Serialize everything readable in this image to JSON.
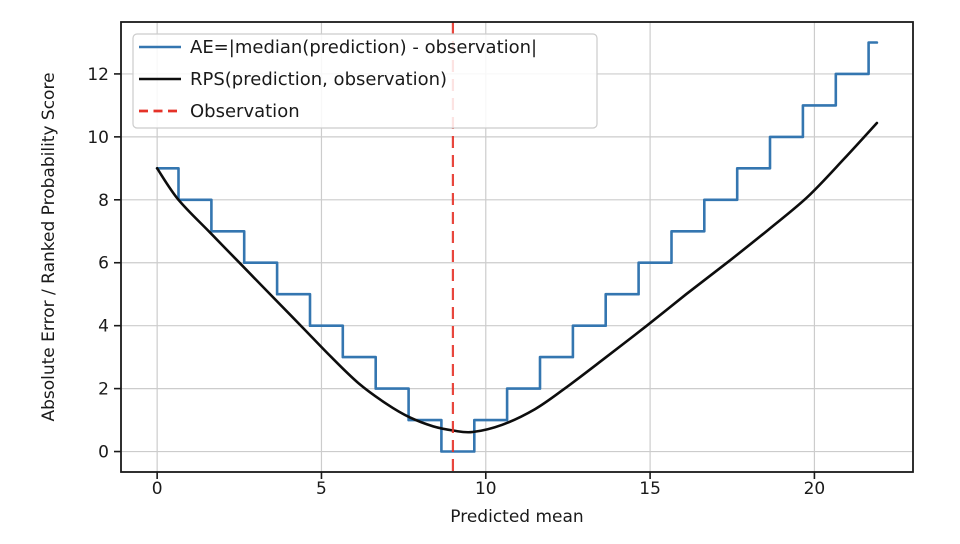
{
  "chart_data": {
    "type": "line",
    "title": "",
    "xlabel": "Predicted mean",
    "ylabel": "Absolute Error / Ranked Probability Score",
    "xlim": [
      -1.1,
      23.0
    ],
    "ylim": [
      -0.65,
      13.65
    ],
    "xticks": [
      0,
      5,
      10,
      15,
      20
    ],
    "yticks": [
      0,
      2,
      4,
      6,
      8,
      10,
      12
    ],
    "grid": true,
    "legend_position": "upper left",
    "observation_value": 9,
    "series": [
      {
        "name": "AE=|median(prediction) - observation|",
        "type": "step",
        "color": "#3476b0",
        "step_x": [
          0,
          0.65,
          1.65,
          2.65,
          3.65,
          4.65,
          5.65,
          6.65,
          7.65,
          8.65,
          9.65,
          10.65,
          11.65,
          12.65,
          13.65,
          14.65,
          15.65,
          16.65,
          17.65,
          18.65,
          19.65,
          20.65,
          21.65,
          21.9
        ],
        "step_levels": [
          9,
          8,
          7,
          6,
          5,
          4,
          3,
          2,
          1,
          0,
          1,
          2,
          3,
          4,
          5,
          6,
          7,
          8,
          9,
          10,
          11,
          12,
          13
        ]
      },
      {
        "name": "RPS(prediction, observation)",
        "type": "smooth",
        "color": "#0d0d0d",
        "x": [
          0,
          0.65,
          1.6,
          2.55,
          3.5,
          4.4,
          5.3,
          6.15,
          7.0,
          7.7,
          8.4,
          9.0,
          9.6,
          10.5,
          11.5,
          12.4,
          13.6,
          14.9,
          16.1,
          17.4,
          18.6,
          19.8,
          20.9,
          21.9
        ],
        "y": [
          9.0,
          8.0,
          6.97,
          5.95,
          4.93,
          3.97,
          3.0,
          2.15,
          1.5,
          1.08,
          0.8,
          0.67,
          0.62,
          0.85,
          1.35,
          2.0,
          2.95,
          4.0,
          5.0,
          6.05,
          7.05,
          8.1,
          9.3,
          10.44
        ]
      },
      {
        "name": "Observation",
        "type": "vline",
        "color": "#e53228",
        "x": 9,
        "linestyle": "dashed"
      }
    ]
  }
}
